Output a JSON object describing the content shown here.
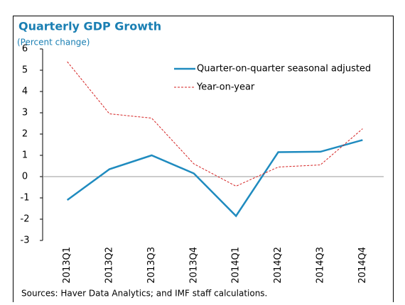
{
  "chart_data": {
    "type": "line",
    "title": "Quarterly GDP Growth",
    "subtitle": "(Percent change)",
    "categories": [
      "2013Q1",
      "2013Q2",
      "2013Q3",
      "2013Q4",
      "2014Q1",
      "2014Q2",
      "2014Q3",
      "2014Q4"
    ],
    "series": [
      {
        "name": "Quarter-on-quarter seasonal adjusted",
        "color": "#1f8bbf",
        "dash": "solid",
        "values": [
          -1.1,
          0.35,
          1.0,
          0.15,
          -1.85,
          1.15,
          1.17,
          1.72
        ]
      },
      {
        "name": "Year-on-year",
        "color": "#d42020",
        "dash": "dashed",
        "values": [
          5.4,
          2.95,
          2.75,
          0.6,
          -0.45,
          0.45,
          0.55,
          2.25
        ]
      }
    ],
    "ylim": [
      -3,
      6
    ],
    "yticks": [
      -3,
      -2,
      -1,
      0,
      1,
      2,
      3,
      4,
      5,
      6
    ],
    "grid": false,
    "source": "Sources: Haver Data Analytics; and IMF staff calculations."
  }
}
